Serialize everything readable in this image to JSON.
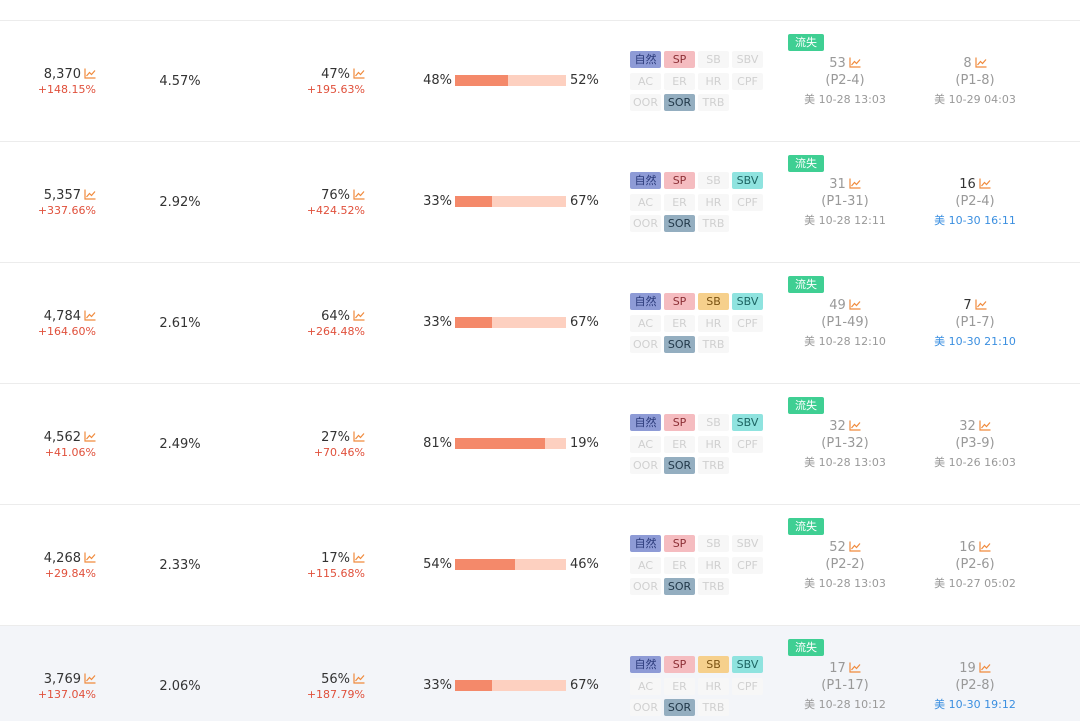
{
  "colors": {
    "negative_delta": "#e0503b",
    "bar_left": "#f4896a",
    "bar_right": "#fdd0c0",
    "loss_badge": "#3fcf93",
    "recent_time": "#3b8fe0",
    "highlight_row": "#f3f5f9"
  },
  "icons": {
    "trend": "line-chart-icon"
  },
  "tag_labels": [
    "自然",
    "SP",
    "SB",
    "SBV",
    "AC",
    "ER",
    "HR",
    "CPF",
    "OOR",
    "SOR",
    "TRB"
  ],
  "rows": [
    {
      "sales": "8,370",
      "sales_change": "+148.15%",
      "share": "4.57%",
      "ratio": "47%",
      "ratio_change": "+195.63%",
      "split_left": "48%",
      "split_right": "52%",
      "split_fraction": 0.48,
      "active_tags": [
        "自然",
        "SP",
        "SOR"
      ],
      "badge": "流失",
      "rank1_num": "53",
      "rank1_pos": "(P2-4)",
      "rank1_time": "美 10-28 13:03",
      "rank2_num": "8",
      "rank2_pos": "(P1-8)",
      "rank2_time": "美 10-29 04:03",
      "rank2_recent": false,
      "highlight": false
    },
    {
      "sales": "5,357",
      "sales_change": "+337.66%",
      "share": "2.92%",
      "ratio": "76%",
      "ratio_change": "+424.52%",
      "split_left": "33%",
      "split_right": "67%",
      "split_fraction": 0.33,
      "active_tags": [
        "自然",
        "SP",
        "SBV",
        "SOR"
      ],
      "badge": "流失",
      "rank1_num": "31",
      "rank1_pos": "(P1-31)",
      "rank1_time": "美 10-28 12:11",
      "rank2_num": "16",
      "rank2_pos": "(P2-4)",
      "rank2_time": "美 10-30 16:11",
      "rank2_recent": true,
      "highlight": false
    },
    {
      "sales": "4,784",
      "sales_change": "+164.60%",
      "share": "2.61%",
      "ratio": "64%",
      "ratio_change": "+264.48%",
      "split_left": "33%",
      "split_right": "67%",
      "split_fraction": 0.33,
      "active_tags": [
        "自然",
        "SP",
        "SB",
        "SBV",
        "SOR"
      ],
      "badge": "流失",
      "rank1_num": "49",
      "rank1_pos": "(P1-49)",
      "rank1_time": "美 10-28 12:10",
      "rank2_num": "7",
      "rank2_pos": "(P1-7)",
      "rank2_time": "美 10-30 21:10",
      "rank2_recent": true,
      "highlight": false
    },
    {
      "sales": "4,562",
      "sales_change": "+41.06%",
      "share": "2.49%",
      "ratio": "27%",
      "ratio_change": "+70.46%",
      "split_left": "81%",
      "split_right": "19%",
      "split_fraction": 0.81,
      "active_tags": [
        "自然",
        "SP",
        "SBV",
        "SOR"
      ],
      "badge": "流失",
      "rank1_num": "32",
      "rank1_pos": "(P1-32)",
      "rank1_time": "美 10-28 13:03",
      "rank2_num": "32",
      "rank2_pos": "(P3-9)",
      "rank2_time": "美 10-26 16:03",
      "rank2_recent": false,
      "highlight": false
    },
    {
      "sales": "4,268",
      "sales_change": "+29.84%",
      "share": "2.33%",
      "ratio": "17%",
      "ratio_change": "+115.68%",
      "split_left": "54%",
      "split_right": "46%",
      "split_fraction": 0.54,
      "active_tags": [
        "自然",
        "SP",
        "SOR"
      ],
      "badge": "流失",
      "rank1_num": "52",
      "rank1_pos": "(P2-2)",
      "rank1_time": "美 10-28 13:03",
      "rank2_num": "16",
      "rank2_pos": "(P2-6)",
      "rank2_time": "美 10-27 05:02",
      "rank2_recent": false,
      "highlight": false
    },
    {
      "sales": "3,769",
      "sales_change": "+137.04%",
      "share": "2.06%",
      "ratio": "56%",
      "ratio_change": "+187.79%",
      "split_left": "33%",
      "split_right": "67%",
      "split_fraction": 0.33,
      "active_tags": [
        "自然",
        "SP",
        "SB",
        "SBV",
        "SOR"
      ],
      "badge": "流失",
      "rank1_num": "17",
      "rank1_pos": "(P1-17)",
      "rank1_time": "美 10-28 10:12",
      "rank2_num": "19",
      "rank2_pos": "(P2-8)",
      "rank2_time": "美 10-30 19:12",
      "rank2_recent": true,
      "highlight": true
    }
  ]
}
